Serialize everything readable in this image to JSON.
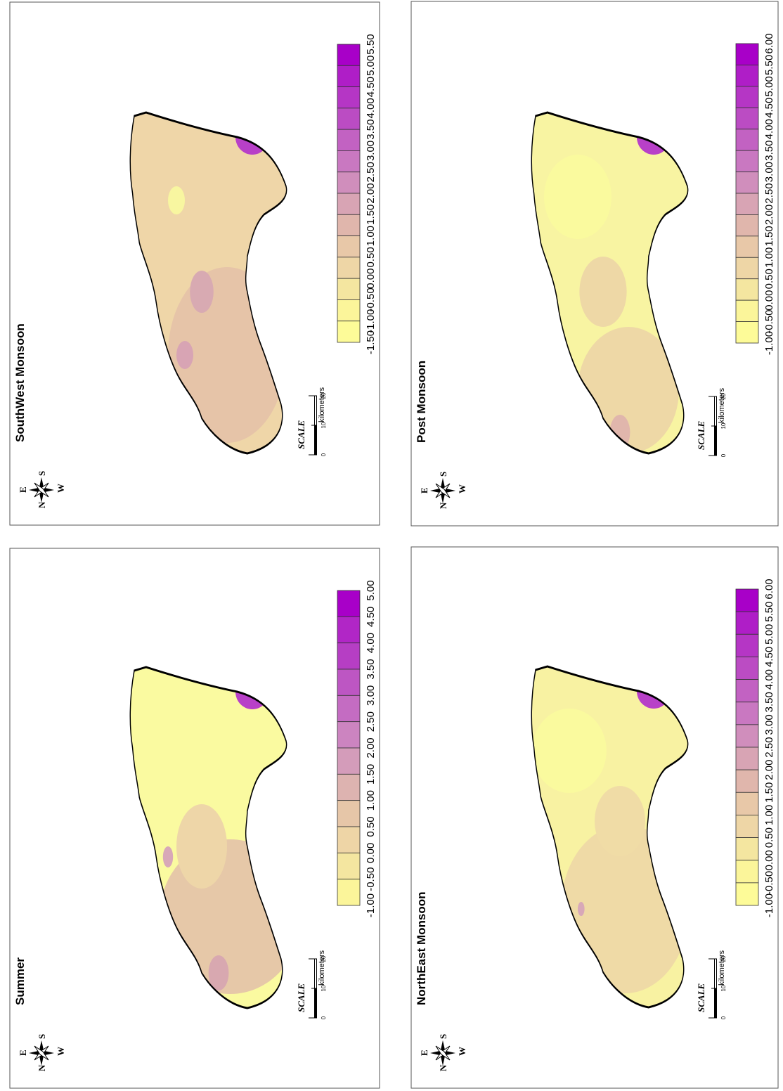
{
  "panels": [
    {
      "title": "Summer",
      "legend_ticks": [
        "5.00",
        "4.50",
        "4.00",
        "3.50",
        "3.00",
        "2.50",
        "2.00",
        "1.50",
        "1.00",
        "0.50",
        "0.00",
        "-0.50",
        "-1.00"
      ],
      "legend_colors": [
        "#a800c8",
        "#b126c6",
        "#b63ec4",
        "#bd56c3",
        "#c46cc2",
        "#cc84c0",
        "#d49cba",
        "#ddb3b0",
        "#e6c6a8",
        "#eed5a6",
        "#f4e6a0",
        "#fbf59a"
      ],
      "fill_base": "#fafaa0",
      "zones": [
        {
          "shape": "ellipse",
          "center": [
            0.28,
            0.62
          ],
          "radius": [
            0.22,
            0.42
          ],
          "color": "#e6c8a8"
        },
        {
          "shape": "ellipse",
          "center": [
            0.12,
            0.55
          ],
          "radius": [
            0.05,
            0.06
          ],
          "color": "#d8a8b0"
        },
        {
          "shape": "ellipse",
          "center": [
            0.48,
            0.45
          ],
          "radius": [
            0.12,
            0.15
          ],
          "color": "#eed6a8"
        },
        {
          "shape": "ellipse",
          "center": [
            0.45,
            0.25
          ],
          "radius": [
            0.03,
            0.03
          ],
          "color": "#d8a8b8"
        },
        {
          "shape": "ellipse",
          "center": [
            0.92,
            0.75
          ],
          "radius": [
            0.05,
            0.1
          ],
          "color": "#b840c8"
        },
        {
          "shape": "ellipse",
          "center": [
            0.94,
            0.78
          ],
          "radius": [
            0.03,
            0.07
          ],
          "color": "#a800c8"
        }
      ]
    },
    {
      "title": "SouthWest Monsoon",
      "legend_ticks": [
        "5.50",
        "5.00",
        "4.50",
        "4.00",
        "3.50",
        "3.00",
        "2.50",
        "2.00",
        "1.50",
        "1.00",
        "0.50",
        "0.00",
        "-0.50",
        "-1.00",
        "-1.50"
      ],
      "legend_colors": [
        "#a800c8",
        "#af1ec7",
        "#b536c5",
        "#bb4cc3",
        "#c262c2",
        "#c978c1",
        "#d08ebc",
        "#d8a4b4",
        "#e0b6ac",
        "#e8c8a8",
        "#eed6a6",
        "#f4e6a0",
        "#fbf59a",
        "#fdfb98"
      ],
      "fill_base": "#efd6a8",
      "zones": [
        {
          "shape": "ellipse",
          "center": [
            0.3,
            0.6
          ],
          "radius": [
            0.25,
            0.35
          ],
          "color": "#e6c4a8"
        },
        {
          "shape": "ellipse",
          "center": [
            0.48,
            0.45
          ],
          "radius": [
            0.06,
            0.07
          ],
          "color": "#d8aab2"
        },
        {
          "shape": "ellipse",
          "center": [
            0.3,
            0.35
          ],
          "radius": [
            0.04,
            0.05
          ],
          "color": "#d8a4b4"
        },
        {
          "shape": "ellipse",
          "center": [
            0.74,
            0.3
          ],
          "radius": [
            0.04,
            0.05
          ],
          "color": "#f8f6a0"
        },
        {
          "shape": "ellipse",
          "center": [
            0.62,
            0.8
          ],
          "radius": [
            0.04,
            0.06
          ],
          "color": "#f8f6a0"
        },
        {
          "shape": "ellipse",
          "center": [
            0.92,
            0.75
          ],
          "radius": [
            0.05,
            0.1
          ],
          "color": "#b840c8"
        },
        {
          "shape": "ellipse",
          "center": [
            0.94,
            0.78
          ],
          "radius": [
            0.03,
            0.07
          ],
          "color": "#a800c8"
        }
      ]
    },
    {
      "title": "NorthEast Monsoon",
      "legend_ticks": [
        "6.00",
        "5.50",
        "5.00",
        "4.50",
        "4.00",
        "3.50",
        "3.00",
        "2.50",
        "2.00",
        "1.50",
        "1.00",
        "0.50",
        "0.00",
        "-0.50",
        "-1.00"
      ],
      "legend_colors": [
        "#a800c8",
        "#af1ec7",
        "#b536c5",
        "#bb4cc3",
        "#c262c2",
        "#c978c1",
        "#d08ebc",
        "#d8a4b4",
        "#e0b6ac",
        "#e8c8a8",
        "#eed6a6",
        "#f4e6a0",
        "#fbf59a",
        "#fdfb98"
      ],
      "fill_base": "#f8f2a2",
      "zones": [
        {
          "shape": "ellipse",
          "center": [
            0.3,
            0.58
          ],
          "radius": [
            0.24,
            0.38
          ],
          "color": "#efdaa6"
        },
        {
          "shape": "ellipse",
          "center": [
            0.55,
            0.55
          ],
          "radius": [
            0.1,
            0.15
          ],
          "color": "#f0dca6"
        },
        {
          "shape": "ellipse",
          "center": [
            0.3,
            0.32
          ],
          "radius": [
            0.02,
            0.02
          ],
          "color": "#d8a8b8"
        },
        {
          "shape": "ellipse",
          "center": [
            0.75,
            0.25
          ],
          "radius": [
            0.12,
            0.22
          ],
          "color": "#fafa9e"
        },
        {
          "shape": "ellipse",
          "center": [
            0.92,
            0.75
          ],
          "radius": [
            0.05,
            0.1
          ],
          "color": "#b840c8"
        },
        {
          "shape": "ellipse",
          "center": [
            0.94,
            0.78
          ],
          "radius": [
            0.03,
            0.07
          ],
          "color": "#a800c8"
        }
      ]
    },
    {
      "title": "Post Monsoon",
      "legend_ticks": [
        "6.00",
        "5.50",
        "5.00",
        "4.50",
        "4.00",
        "3.50",
        "3.00",
        "2.50",
        "2.00",
        "1.50",
        "1.00",
        "0.50",
        "0.00",
        "-0.50",
        "-1.00"
      ],
      "legend_colors": [
        "#a800c8",
        "#af1ec7",
        "#b536c5",
        "#bb4cc3",
        "#c262c2",
        "#c978c1",
        "#d08ebc",
        "#d8a4b4",
        "#e0b6ac",
        "#e8c8a8",
        "#eed6a6",
        "#f4e6a0",
        "#fbf59a",
        "#fdfb98"
      ],
      "fill_base": "#f8f4a2",
      "zones": [
        {
          "shape": "ellipse",
          "center": [
            0.2,
            0.6
          ],
          "radius": [
            0.18,
            0.3
          ],
          "color": "#eed8a6"
        },
        {
          "shape": "ellipse",
          "center": [
            0.08,
            0.55
          ],
          "radius": [
            0.05,
            0.06
          ],
          "color": "#e0b6ac"
        },
        {
          "shape": "ellipse",
          "center": [
            0.48,
            0.45
          ],
          "radius": [
            0.1,
            0.14
          ],
          "color": "#eed8a6"
        },
        {
          "shape": "ellipse",
          "center": [
            0.75,
            0.3
          ],
          "radius": [
            0.12,
            0.2
          ],
          "color": "#fafa9e"
        },
        {
          "shape": "ellipse",
          "center": [
            0.92,
            0.75
          ],
          "radius": [
            0.05,
            0.1
          ],
          "color": "#b840c8"
        },
        {
          "shape": "ellipse",
          "center": [
            0.94,
            0.78
          ],
          "radius": [
            0.03,
            0.07
          ],
          "color": "#a800c8"
        }
      ]
    }
  ],
  "scalebar": {
    "label": "SCALE",
    "ticks": [
      "0",
      "10",
      "20"
    ],
    "unit": "kilometers"
  },
  "compass": {
    "N": "N",
    "E": "E",
    "S": "S",
    "W": "W"
  },
  "colors": {
    "outline": "#000000",
    "frame": "#555555",
    "low": "#fdfb98",
    "high": "#a800c8"
  }
}
